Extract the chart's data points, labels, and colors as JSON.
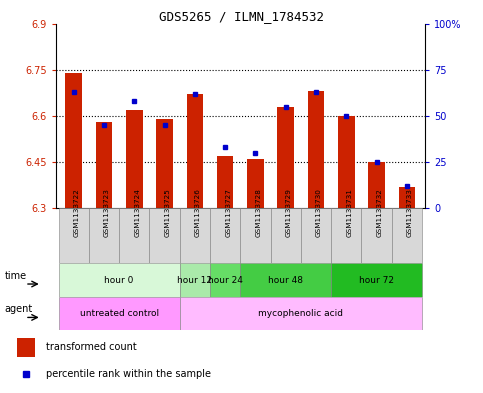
{
  "title": "GDS5265 / ILMN_1784532",
  "samples": [
    "GSM1133722",
    "GSM1133723",
    "GSM1133724",
    "GSM1133725",
    "GSM1133726",
    "GSM1133727",
    "GSM1133728",
    "GSM1133729",
    "GSM1133730",
    "GSM1133731",
    "GSM1133732",
    "GSM1133733"
  ],
  "transformed_counts": [
    6.74,
    6.58,
    6.62,
    6.59,
    6.67,
    6.47,
    6.46,
    6.63,
    6.68,
    6.6,
    6.45,
    6.37
  ],
  "percentile_ranks": [
    63,
    45,
    58,
    45,
    62,
    33,
    30,
    55,
    63,
    50,
    25,
    12
  ],
  "ylim_left": [
    6.3,
    6.9
  ],
  "ylim_right": [
    0,
    100
  ],
  "yticks_left": [
    6.3,
    6.45,
    6.6,
    6.75,
    6.9
  ],
  "ytick_labels_left": [
    "6.3",
    "6.45",
    "6.6",
    "6.75",
    "6.9"
  ],
  "yticks_right": [
    0,
    25,
    50,
    75,
    100
  ],
  "ytick_labels_right": [
    "0",
    "25",
    "50",
    "75",
    "100%"
  ],
  "hlines": [
    6.45,
    6.6,
    6.75
  ],
  "bar_color": "#cc2200",
  "dot_color": "#0000cc",
  "bar_bottom": 6.3,
  "time_groups": [
    {
      "label": "hour 0",
      "start": 0,
      "end": 3,
      "color": "#d8f8d8"
    },
    {
      "label": "hour 12",
      "start": 4,
      "end": 4,
      "color": "#aaeaaa"
    },
    {
      "label": "hour 24",
      "start": 5,
      "end": 5,
      "color": "#66dd66"
    },
    {
      "label": "hour 48",
      "start": 6,
      "end": 8,
      "color": "#44cc44"
    },
    {
      "label": "hour 72",
      "start": 9,
      "end": 11,
      "color": "#22bb22"
    }
  ],
  "agent_groups": [
    {
      "label": "untreated control",
      "start": 0,
      "end": 3,
      "color": "#ff99ff"
    },
    {
      "label": "mycophenolic acid",
      "start": 4,
      "end": 11,
      "color": "#ffbbff"
    }
  ],
  "time_label": "time",
  "agent_label": "agent",
  "legend_bar_label": "transformed count",
  "legend_dot_label": "percentile rank within the sample"
}
